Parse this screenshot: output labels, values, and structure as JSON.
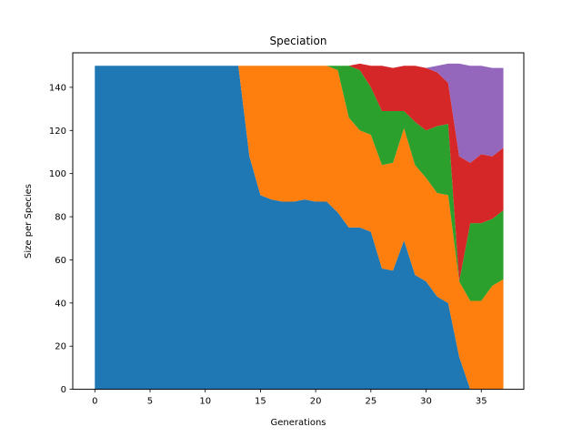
{
  "chart_data": {
    "type": "area",
    "stacked": true,
    "title": "Speciation",
    "xlabel": "Generations",
    "ylabel": "Size per Species",
    "xlim": [
      -2,
      38.85
    ],
    "ylim": [
      0,
      156
    ],
    "xticks": [
      0,
      5,
      10,
      15,
      20,
      25,
      30,
      35
    ],
    "yticks": [
      0,
      20,
      40,
      60,
      80,
      100,
      120,
      140
    ],
    "grid": false,
    "legend": "none",
    "x": [
      0,
      1,
      2,
      3,
      4,
      5,
      6,
      7,
      8,
      9,
      10,
      11,
      12,
      13,
      14,
      15,
      16,
      17,
      18,
      19,
      20,
      21,
      22,
      23,
      24,
      25,
      26,
      27,
      28,
      29,
      30,
      31,
      32,
      33,
      34,
      35,
      36,
      37
    ],
    "series": [
      {
        "color": "#1f77b4",
        "values": [
          150,
          150,
          150,
          150,
          150,
          150,
          150,
          150,
          150,
          150,
          150,
          150,
          150,
          150,
          108,
          90,
          88,
          87,
          87,
          88,
          87,
          87,
          82,
          75,
          75,
          73,
          56,
          55,
          69,
          53,
          50,
          43,
          40,
          15,
          0,
          0,
          0,
          0
        ]
      },
      {
        "color": "#ff7f0e",
        "values": [
          0,
          0,
          0,
          0,
          0,
          0,
          0,
          0,
          0,
          0,
          0,
          0,
          0,
          0,
          42,
          60,
          62,
          63,
          63,
          62,
          63,
          63,
          66,
          51,
          45,
          45,
          48,
          50,
          52,
          51,
          48,
          48,
          50,
          35,
          41,
          41,
          48,
          51
        ]
      },
      {
        "color": "#2ca02c",
        "values": [
          0,
          0,
          0,
          0,
          0,
          0,
          0,
          0,
          0,
          0,
          0,
          0,
          0,
          0,
          0,
          0,
          0,
          0,
          0,
          0,
          0,
          0,
          2,
          24,
          28,
          22,
          25,
          24,
          8,
          20,
          22,
          31,
          33,
          0,
          36,
          36,
          31,
          32
        ]
      },
      {
        "color": "#d62728",
        "values": [
          0,
          0,
          0,
          0,
          0,
          0,
          0,
          0,
          0,
          0,
          0,
          0,
          0,
          0,
          0,
          0,
          0,
          0,
          0,
          0,
          0,
          0,
          0,
          0,
          3,
          10,
          21,
          20,
          21,
          26,
          29,
          25,
          19,
          58,
          28,
          32,
          29,
          29
        ]
      },
      {
        "color": "#9467bd",
        "values": [
          0,
          0,
          0,
          0,
          0,
          0,
          0,
          0,
          0,
          0,
          0,
          0,
          0,
          0,
          0,
          0,
          0,
          0,
          0,
          0,
          0,
          0,
          0,
          0,
          0,
          0,
          0,
          0,
          0,
          0,
          0,
          3,
          9,
          43,
          45,
          41,
          41,
          37
        ]
      }
    ]
  }
}
